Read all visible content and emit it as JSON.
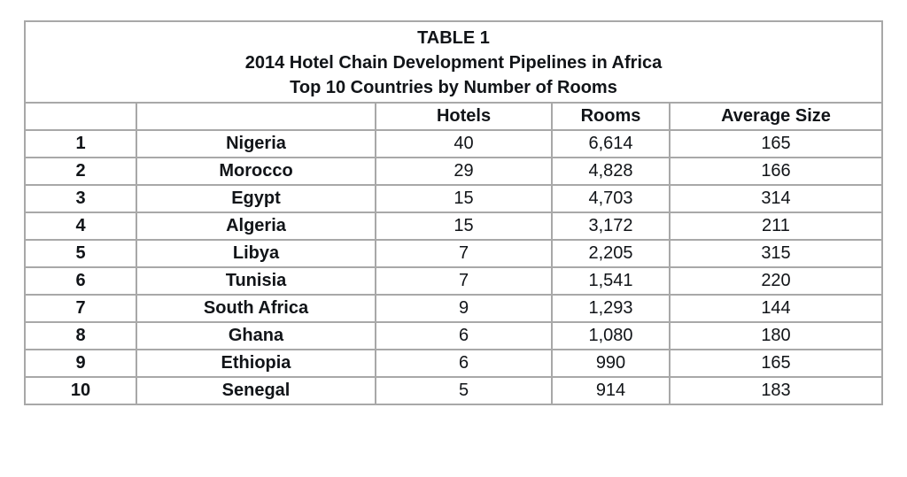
{
  "title": {
    "line1": "TABLE 1",
    "line2": "2014 Hotel Chain Development Pipelines in Africa",
    "line3": "Top 10 Countries by Number of Rooms"
  },
  "headers": [
    "",
    "",
    "Hotels",
    "Rooms",
    "Average Size"
  ],
  "rows": [
    [
      "1",
      "Nigeria",
      "40",
      "6,614",
      "165"
    ],
    [
      "2",
      "Morocco",
      "29",
      "4,828",
      "166"
    ],
    [
      "3",
      "Egypt",
      "15",
      "4,703",
      "314"
    ],
    [
      "4",
      "Algeria",
      "15",
      "3,172",
      "211"
    ],
    [
      "5",
      "Libya",
      "7",
      "2,205",
      "315"
    ],
    [
      "6",
      "Tunisia",
      "7",
      "1,541",
      "220"
    ],
    [
      "7",
      "South Africa",
      "9",
      "1,293",
      "144"
    ],
    [
      "8",
      "Ghana",
      "6",
      "1,080",
      "180"
    ],
    [
      "9",
      "Ethiopia",
      "6",
      "990",
      "165"
    ],
    [
      "10",
      "Senegal",
      "5",
      "914",
      "183"
    ]
  ]
}
